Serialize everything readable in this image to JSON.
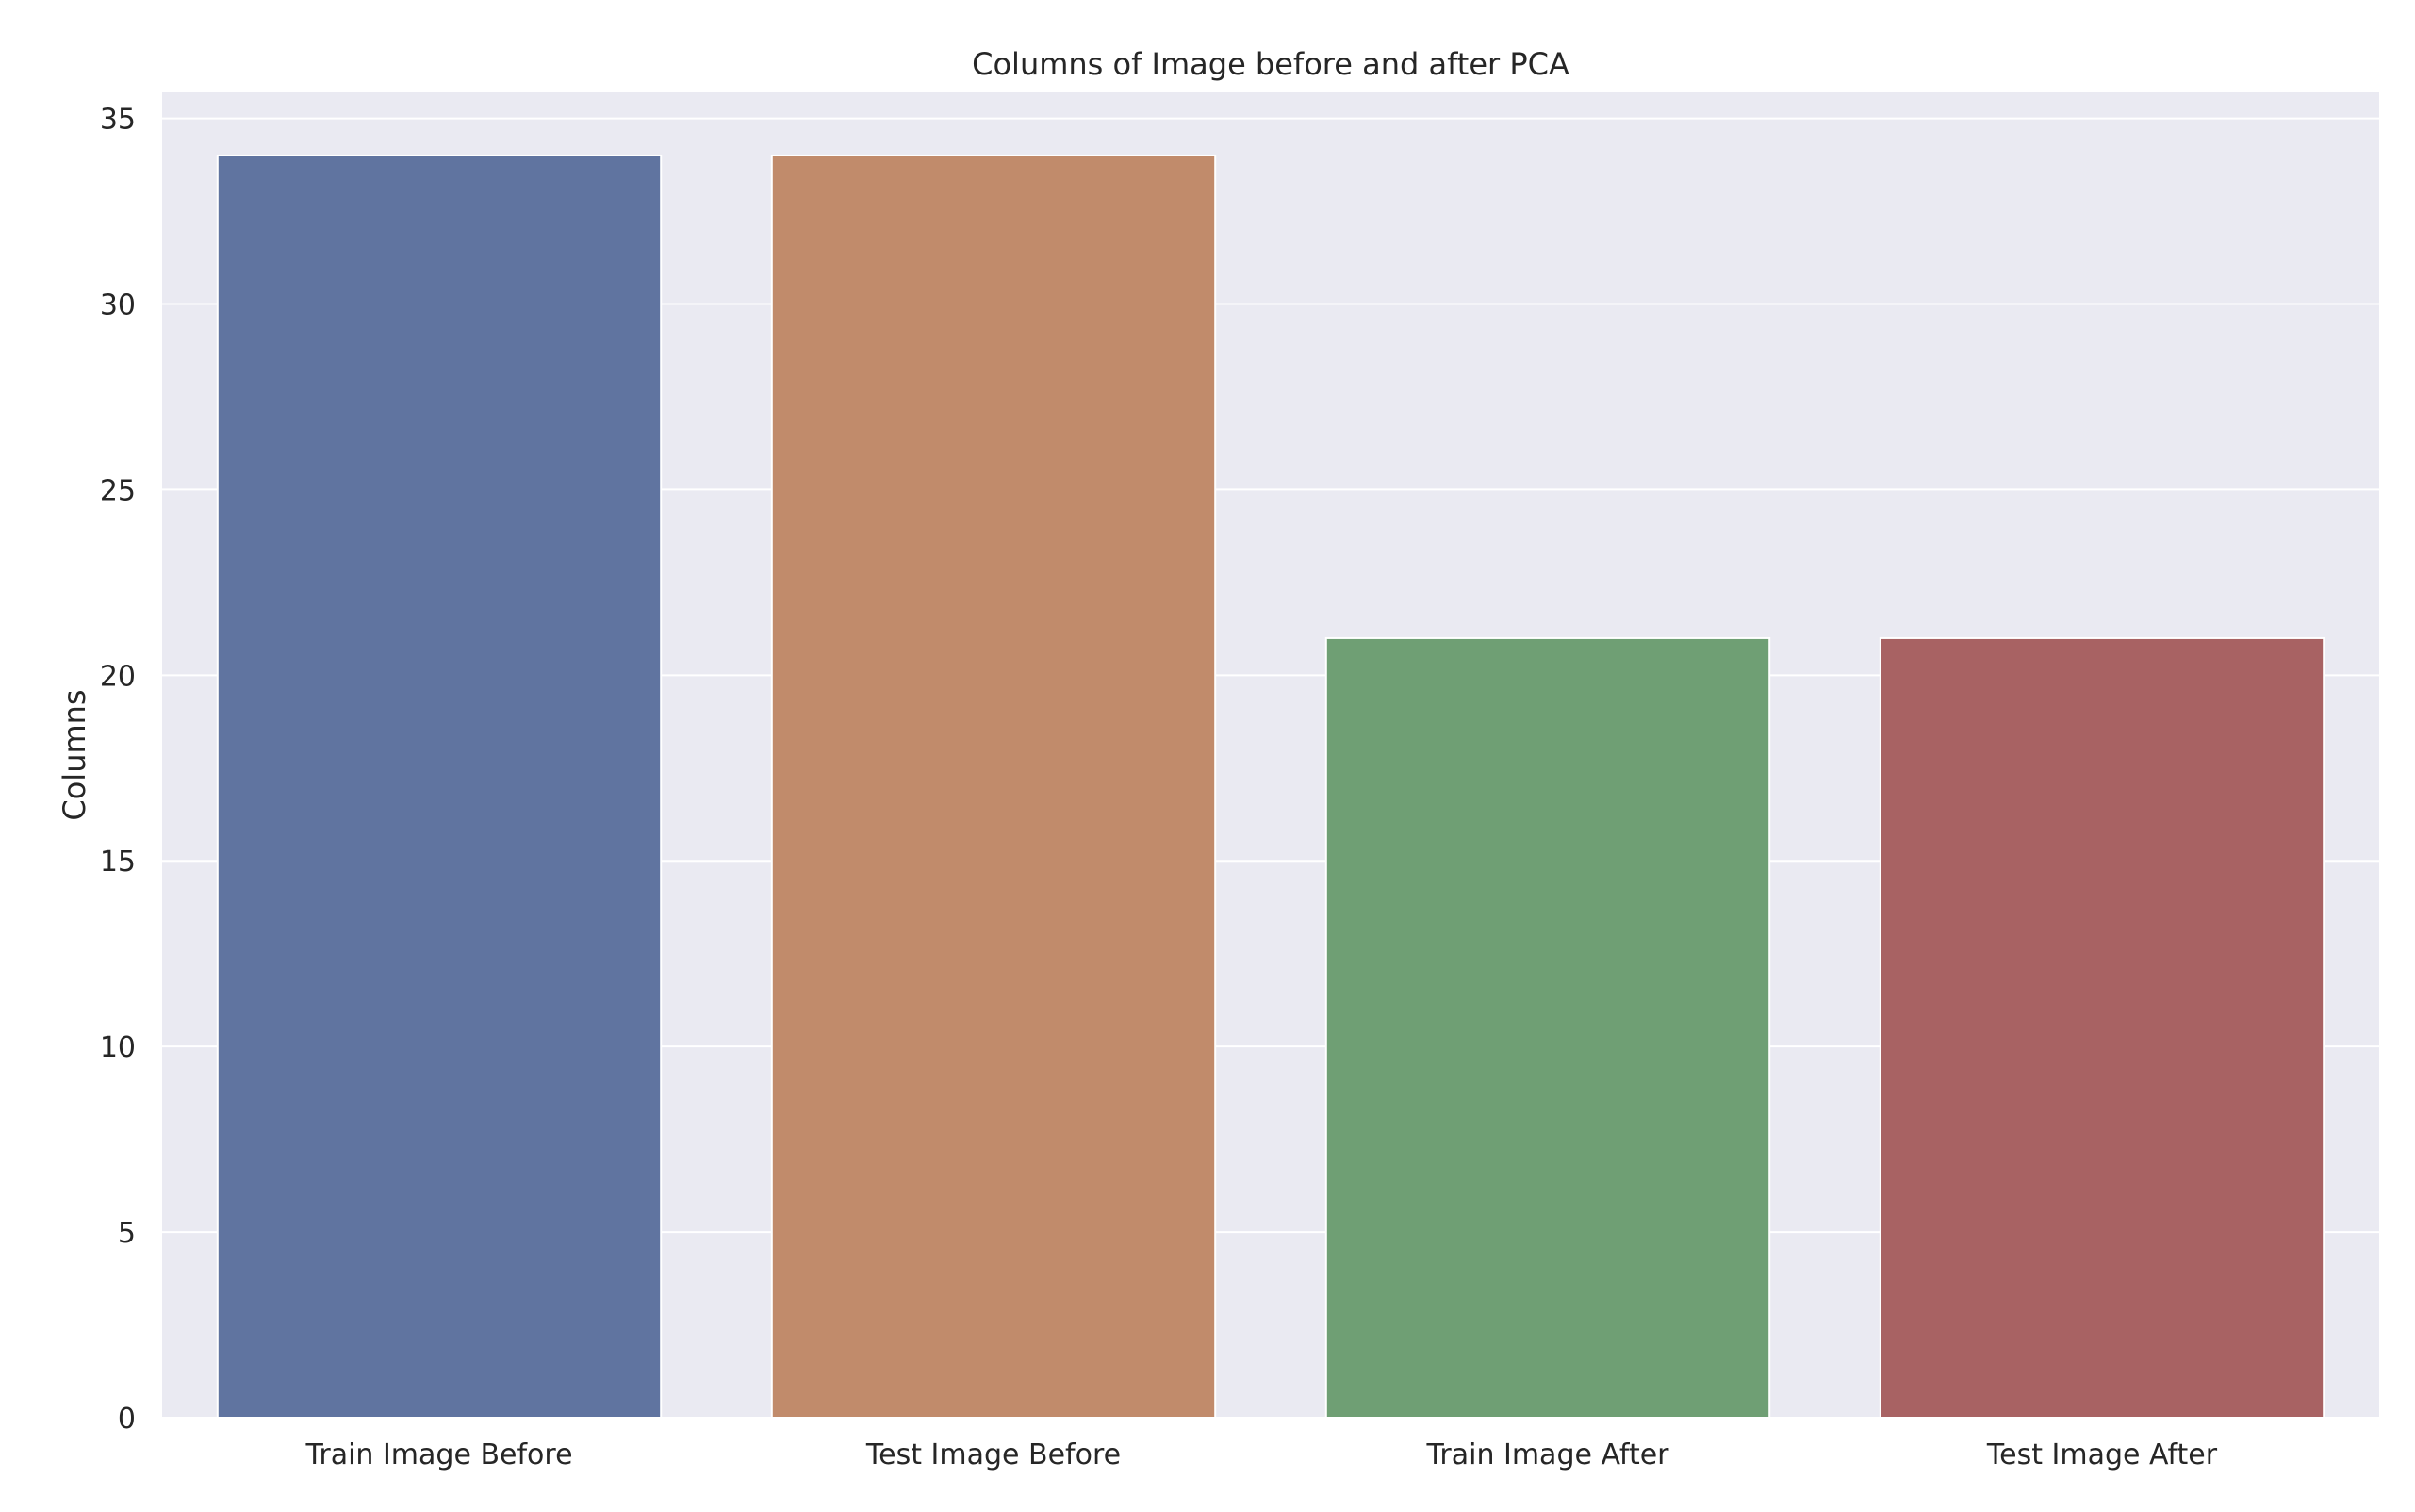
{
  "chart_data": {
    "type": "bar",
    "title": "Columns of Image before and after PCA",
    "xlabel": "",
    "ylabel": "Columns",
    "categories": [
      "Train Image Before",
      "Test Image Before",
      "Train Image After",
      "Test Image After"
    ],
    "values": [
      34,
      34,
      21,
      21
    ],
    "colors": [
      "#6074a0",
      "#c18b6b",
      "#6f9f74",
      "#a86263"
    ],
    "ylim": [
      0,
      35.7
    ],
    "yticks": [
      0,
      5,
      10,
      15,
      20,
      25,
      30,
      35
    ],
    "grid": true,
    "plot_background": "#eaeaf2",
    "grid_color": "#ffffff"
  }
}
